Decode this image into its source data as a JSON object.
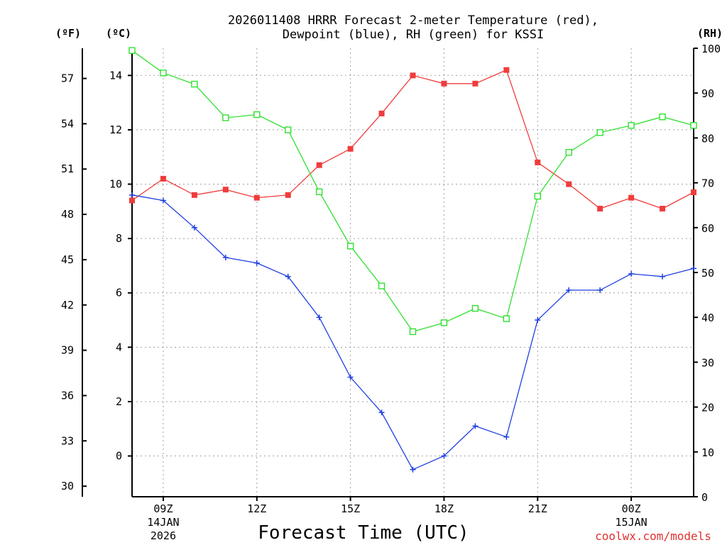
{
  "chart_data": {
    "type": "line",
    "title_line1": "2026011408 HRRR Forecast 2-meter Temperature (red),",
    "title_line2": "Dewpoint (blue), RH (green) for KSSI",
    "xlabel": "Forecast Time (UTC)",
    "credit": "coolwx.com/models",
    "left_unit_f": "(ºF)",
    "left_unit_c": "(ºC)",
    "right_unit": "(RH)",
    "x_hours": [
      8,
      9,
      10,
      11,
      12,
      13,
      14,
      15,
      16,
      17,
      18,
      19,
      20,
      21,
      22,
      23,
      24,
      25,
      26
    ],
    "x_ticks": [
      {
        "hour": 9,
        "label": "09Z",
        "sub1": "14JAN",
        "sub2": "2026"
      },
      {
        "hour": 12,
        "label": "12Z",
        "sub1": "",
        "sub2": ""
      },
      {
        "hour": 15,
        "label": "15Z",
        "sub1": "",
        "sub2": ""
      },
      {
        "hour": 18,
        "label": "18Z",
        "sub1": "",
        "sub2": ""
      },
      {
        "hour": 21,
        "label": "21Z",
        "sub1": "",
        "sub2": ""
      },
      {
        "hour": 24,
        "label": "00Z",
        "sub1": "15JAN",
        "sub2": ""
      }
    ],
    "ylim_c": [
      -1.5,
      15
    ],
    "ylim_rh": [
      0,
      100
    ],
    "yticks_c": [
      "0",
      "2",
      "4",
      "6",
      "8",
      "10",
      "12",
      "14"
    ],
    "yticks_f": [
      "30",
      "33",
      "36",
      "39",
      "42",
      "45",
      "48",
      "51",
      "54",
      "57"
    ],
    "yticks_rh": [
      "0",
      "10",
      "20",
      "30",
      "40",
      "50",
      "60",
      "70",
      "80",
      "90",
      "100"
    ],
    "series": [
      {
        "name": "Temperature",
        "unit": "C",
        "color": "#f03c3c",
        "marker": "filled-square",
        "values": [
          9.4,
          10.2,
          9.6,
          9.8,
          9.5,
          9.6,
          10.7,
          11.3,
          12.6,
          14.0,
          13.7,
          13.7,
          14.2,
          10.8,
          10.0,
          9.1,
          9.5,
          9.1,
          9.7
        ]
      },
      {
        "name": "Dewpoint",
        "unit": "C",
        "color": "#2040e0",
        "marker": "plus",
        "values": [
          9.6,
          9.4,
          8.4,
          7.3,
          7.1,
          6.6,
          5.1,
          2.9,
          1.6,
          -0.5,
          0.0,
          1.1,
          0.7,
          5.0,
          6.1,
          6.1,
          6.7,
          6.6,
          6.9
        ]
      },
      {
        "name": "RH",
        "unit": "%",
        "color": "#30e030",
        "marker": "open-square",
        "values": [
          99.5,
          94.5,
          92.0,
          84.5,
          85.2,
          81.8,
          68.0,
          55.9,
          47.0,
          36.8,
          38.8,
          42.0,
          39.7,
          67.0,
          76.8,
          81.2,
          82.8,
          84.7,
          82.8
        ]
      }
    ]
  }
}
